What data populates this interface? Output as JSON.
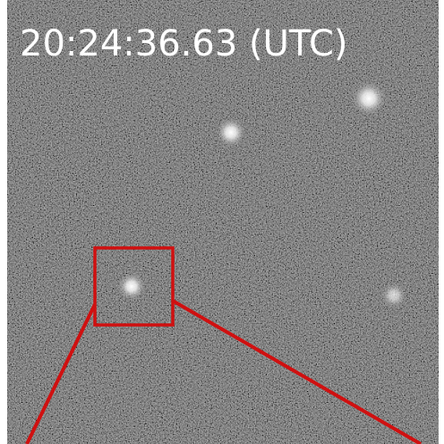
{
  "timestamp": "20:24:36.63 (UTC)"
}
